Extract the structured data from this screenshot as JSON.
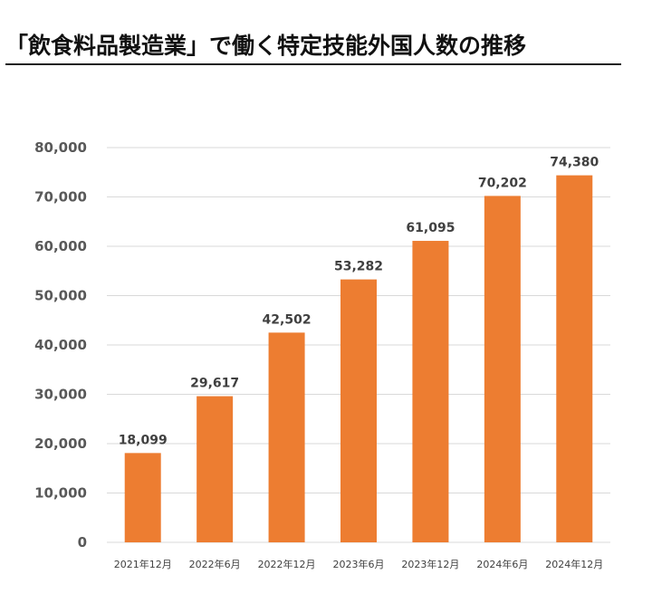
{
  "title": "「飲食料品製造業」で働く特定技能外国人数の推移",
  "chart_data": {
    "type": "bar",
    "categories": [
      "2021年12月",
      "2022年6月",
      "2022年12月",
      "2023年6月",
      "2023年12月",
      "2024年6月",
      "2024年12月"
    ],
    "values": [
      18099,
      29617,
      42502,
      53282,
      61095,
      70202,
      74380
    ],
    "data_labels": [
      "18,099",
      "29,617",
      "42,502",
      "53,282",
      "61,095",
      "70,202",
      "74,380"
    ],
    "yticks": [
      0,
      10000,
      20000,
      30000,
      40000,
      50000,
      60000,
      70000,
      80000
    ],
    "ytick_labels": [
      "0",
      "10,000",
      "20,000",
      "30,000",
      "40,000",
      "50,000",
      "60,000",
      "70,000",
      "80,000"
    ],
    "ylim": [
      0,
      80000
    ],
    "grid": true,
    "bar_color": "#ED7D31",
    "grid_color": "#D9D9D9"
  }
}
